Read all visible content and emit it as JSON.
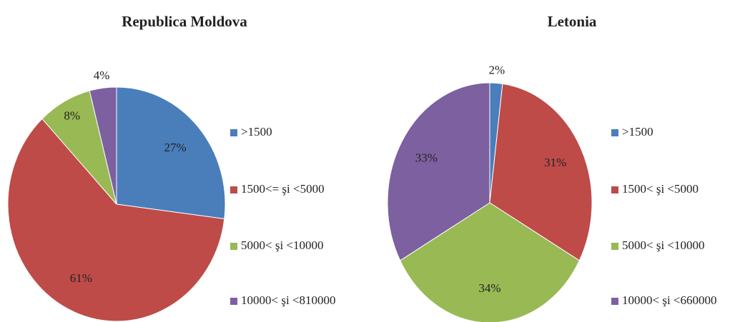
{
  "chart_data": [
    {
      "type": "pie",
      "title": "Republica Moldova",
      "categories": [
        ">1500",
        "1500<= şi <5000",
        "5000< şi <10000",
        "10000< şi <810000"
      ],
      "values": [
        27,
        61,
        8,
        4
      ],
      "value_labels": [
        "27%",
        "61%",
        "8%",
        "4%"
      ],
      "colors": [
        "#4a7ebb",
        "#be4b48",
        "#98b954",
        "#7d60a0"
      ],
      "legend": "right"
    },
    {
      "type": "pie",
      "title": "Letonia",
      "categories": [
        ">1500",
        "1500< şi <5000",
        "5000< şi <10000",
        "10000< şi <660000"
      ],
      "values": [
        2,
        31,
        34,
        33
      ],
      "value_labels": [
        "2%",
        "31%",
        "34%",
        "33%"
      ],
      "colors": [
        "#4a7ebb",
        "#be4b48",
        "#98b954",
        "#7d60a0"
      ],
      "legend": "right"
    }
  ]
}
